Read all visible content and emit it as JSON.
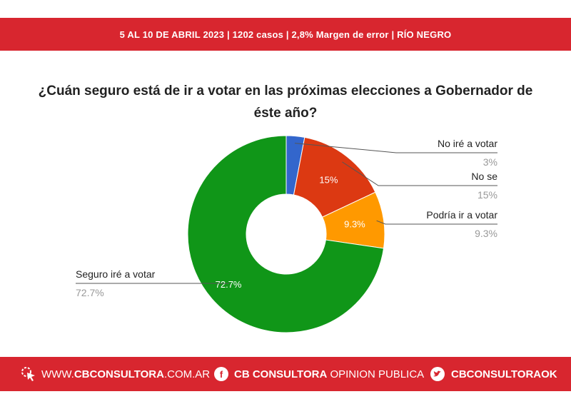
{
  "header": {
    "text": "5 AL 10 DE ABRIL 2023 | 1202 casos | 2,8% Margen de error | RÍO NEGRO"
  },
  "chart_data": {
    "type": "pie",
    "title": "¿Cuán seguro está de ir a votar en las próximas elecciones a Gobernador de éste año?",
    "slices": [
      {
        "label": "No iré a votar",
        "value": 3,
        "display": "3%",
        "inner": "",
        "color": "#3366cc"
      },
      {
        "label": "No se",
        "value": 15,
        "display": "15%",
        "inner": "15%",
        "color": "#dc3912"
      },
      {
        "label": "Podría ir a votar",
        "value": 9.3,
        "display": "9.3%",
        "inner": "9.3%",
        "color": "#ff9900"
      },
      {
        "label": "Seguro iré a votar",
        "value": 72.7,
        "display": "72.7%",
        "inner": "72.7%",
        "color": "#109618"
      }
    ]
  },
  "footer": {
    "web_pre": "WWW.",
    "web_bold": "CBCONSULTORA",
    "web_post": ".COM.AR",
    "fb_bold": "CB CONSULTORA",
    "fb_light": "OPINION PUBLICA",
    "fb_icon": "f",
    "tw_bold": "CBCONSULTORAOK"
  }
}
